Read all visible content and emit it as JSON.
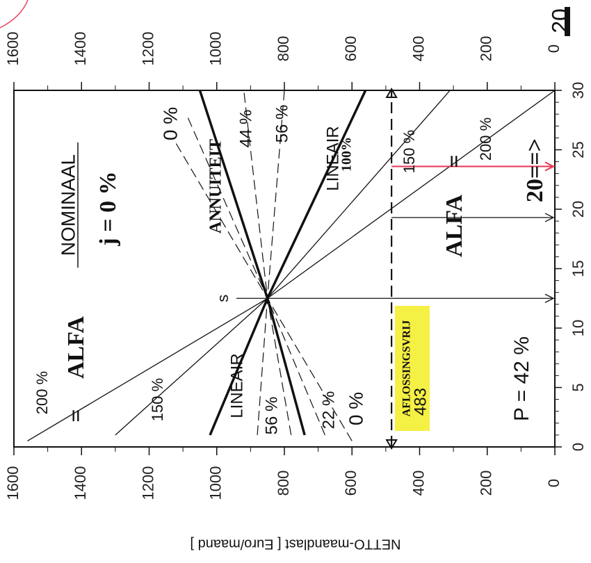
{
  "chart_data": {
    "type": "line",
    "title": "NOMINAAL",
    "subtitle": "j = 0 %",
    "ylabel": "NETTO-maandlast [ Euro/maand ]",
    "xlabel": "",
    "x_ticks": [
      0,
      5,
      10,
      15,
      20,
      25,
      30
    ],
    "y_ticks": [
      0,
      200,
      400,
      600,
      800,
      1000,
      1200,
      1400,
      1600
    ],
    "xlim": [
      0,
      30
    ],
    "ylim": [
      0,
      1600
    ],
    "grid": false,
    "series": [
      {
        "name": "ANNUITEIT",
        "style": "bold",
        "x": [
          1,
          12.5,
          30
        ],
        "y": [
          740,
          850,
          1050
        ]
      },
      {
        "name": "LINEAIR 100%",
        "style": "bold",
        "x": [
          1,
          12.5,
          30
        ],
        "y": [
          1020,
          850,
          560
        ]
      },
      {
        "name": "LINEAIR 150 %",
        "style": "thin",
        "x": [
          1,
          12.5,
          30
        ],
        "y": [
          1300,
          850,
          310
        ]
      },
      {
        "name": "ALFA 200 %",
        "style": "thin",
        "x": [
          0.5,
          12.5,
          30
        ],
        "y": [
          1560,
          850,
          0
        ]
      },
      {
        "name": "0 %",
        "style": "dashed",
        "x": [
          0.5,
          12.5,
          26
        ],
        "y": [
          600,
          850,
          1130
        ]
      },
      {
        "name": "22 %",
        "style": "dashed",
        "x": [
          1,
          12.5,
          28
        ],
        "y": [
          680,
          850,
          1090
        ]
      },
      {
        "name": "44 %",
        "style": "dashed",
        "x": [
          1,
          12.5,
          30
        ],
        "y": [
          780,
          850,
          920
        ]
      },
      {
        "name": "56 %",
        "style": "dashed",
        "x": [
          1,
          12.5,
          30
        ],
        "y": [
          880,
          850,
          800
        ]
      }
    ],
    "annotations": {
      "point_s": {
        "label": "s",
        "x": 12.5,
        "y": 850
      },
      "aflossingsvrij": {
        "label": "AFLOSSINGSVRIJ",
        "value": "483",
        "y": 483
      },
      "p_label": "P = 42 %",
      "alfa_left": "ALFA",
      "alfa_right": "ALFA",
      "equals": "=",
      "twenty": "20==>",
      "right_20": "20",
      "line_labels": {
        "annuiteit": "ANNUITEIT",
        "lineair_top": "LINEAIR",
        "lineair_top_pct": "100%",
        "lineair_bottom": "LINEAIR",
        "pct_0_top": "0 %",
        "pct_44": "44 %",
        "pct_56_top": "56 %",
        "pct_150_top": "150 %",
        "pct_200_top": "200 %",
        "pct_200_bottom": "200 %",
        "pct_150_bottom": "150 %",
        "pct_56_bottom": "56 %",
        "pct_22": "22 %",
        "pct_0_bottom": "0 %"
      }
    }
  }
}
